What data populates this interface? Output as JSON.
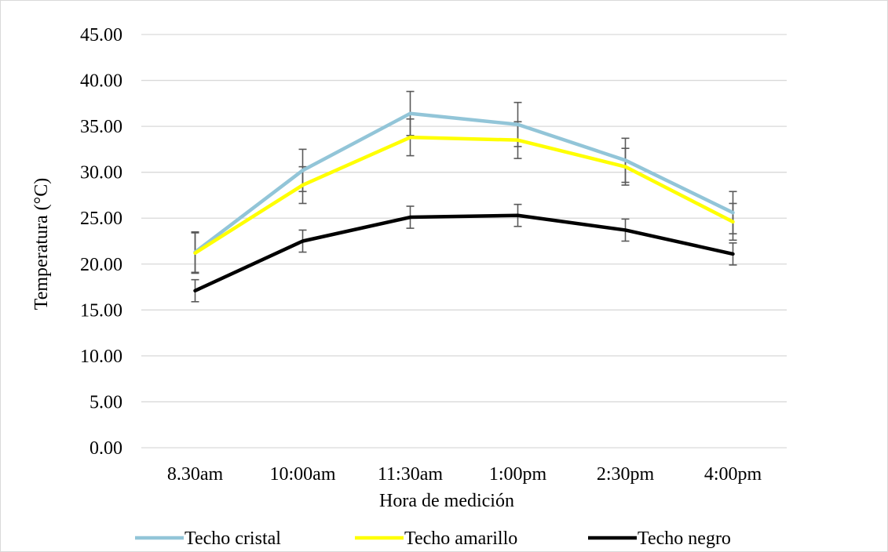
{
  "chart_data": {
    "type": "line",
    "title": "",
    "xlabel": "Hora de medición",
    "ylabel": "Temperatura (°C)",
    "categories": [
      "8.30am",
      "10:00am",
      "11:30am",
      "1:00pm",
      "2:30pm",
      "4:00pm"
    ],
    "ylim": [
      0,
      45
    ],
    "yticks": [
      "0.00",
      "5.00",
      "10.00",
      "15.00",
      "20.00",
      "25.00",
      "30.00",
      "35.00",
      "40.00",
      "45.00"
    ],
    "grid": true,
    "legend_position": "bottom",
    "series": [
      {
        "name": "Techo cristal",
        "color": "#92c5d8",
        "values": [
          21.3,
          30.2,
          36.4,
          35.2,
          31.3,
          25.6
        ],
        "errors": [
          2.2,
          2.3,
          2.4,
          2.4,
          2.4,
          2.3
        ]
      },
      {
        "name": "Techo amarillo",
        "color": "#ffff00",
        "values": [
          21.2,
          28.6,
          33.8,
          33.5,
          30.6,
          24.6
        ],
        "errors": [
          2.2,
          2.0,
          2.0,
          2.0,
          2.0,
          2.0
        ]
      },
      {
        "name": "Techo negro",
        "color": "#000000",
        "values": [
          17.1,
          22.5,
          25.1,
          25.3,
          23.7,
          21.1
        ],
        "errors": [
          1.2,
          1.2,
          1.2,
          1.2,
          1.2,
          1.2
        ]
      }
    ],
    "error_bar_color": "#595959",
    "gridline_color": "#d9d9d9"
  }
}
